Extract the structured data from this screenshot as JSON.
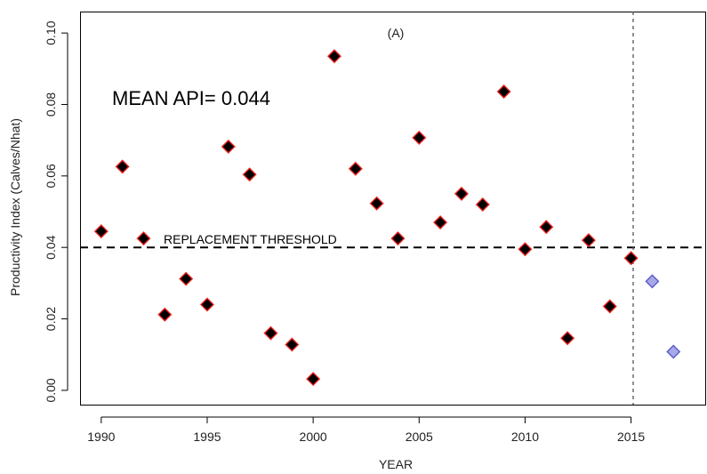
{
  "chart_data": {
    "type": "scatter",
    "panel_label": "(A)",
    "xlabel": "YEAR",
    "ylabel": "Productivity Index (Calves/Nhat)",
    "xlim": [
      1989,
      2018.5
    ],
    "ylim": [
      -0.004,
      0.106
    ],
    "x_ticks": [
      1990,
      1995,
      2000,
      2005,
      2010,
      2015
    ],
    "y_ticks": [
      "0.00",
      "0.02",
      "0.04",
      "0.06",
      "0.08",
      "0.10"
    ],
    "mean_annotation": "MEAN API= 0.044",
    "threshold": {
      "value": 0.04,
      "label": "REPLACEMENT THRESHOLD",
      "style": "dashed"
    },
    "vertical_reference": {
      "x": 2015.1,
      "style": "dotted"
    },
    "series": [
      {
        "marker": "diamond",
        "fill": "#000000",
        "edge": "#e8201c",
        "points": [
          {
            "x": 1990,
            "y": 0.0445
          },
          {
            "x": 1991,
            "y": 0.0626
          },
          {
            "x": 1992,
            "y": 0.0425
          },
          {
            "x": 1993,
            "y": 0.0212
          },
          {
            "x": 1994,
            "y": 0.0312
          },
          {
            "x": 1995,
            "y": 0.024
          },
          {
            "x": 1996,
            "y": 0.0682
          },
          {
            "x": 1997,
            "y": 0.0604
          },
          {
            "x": 1998,
            "y": 0.016
          },
          {
            "x": 1999,
            "y": 0.0128
          },
          {
            "x": 2000,
            "y": 0.0032
          },
          {
            "x": 2001,
            "y": 0.0935
          },
          {
            "x": 2002,
            "y": 0.062
          },
          {
            "x": 2003,
            "y": 0.0523
          },
          {
            "x": 2004,
            "y": 0.0425
          },
          {
            "x": 2005,
            "y": 0.0707
          },
          {
            "x": 2006,
            "y": 0.047
          },
          {
            "x": 2007,
            "y": 0.055
          },
          {
            "x": 2008,
            "y": 0.052
          },
          {
            "x": 2009,
            "y": 0.0836
          },
          {
            "x": 2010,
            "y": 0.0395
          },
          {
            "x": 2011,
            "y": 0.0457
          },
          {
            "x": 2012,
            "y": 0.0146
          },
          {
            "x": 2013,
            "y": 0.042
          },
          {
            "x": 2014,
            "y": 0.0235
          },
          {
            "x": 2015,
            "y": 0.037
          }
        ]
      },
      {
        "marker": "diamond",
        "fill": "#a8a8e6",
        "edge": "#5a5ac8",
        "points": [
          {
            "x": 2016,
            "y": 0.0305
          },
          {
            "x": 2017,
            "y": 0.0108
          }
        ]
      }
    ],
    "grid": false,
    "legend": "none"
  }
}
